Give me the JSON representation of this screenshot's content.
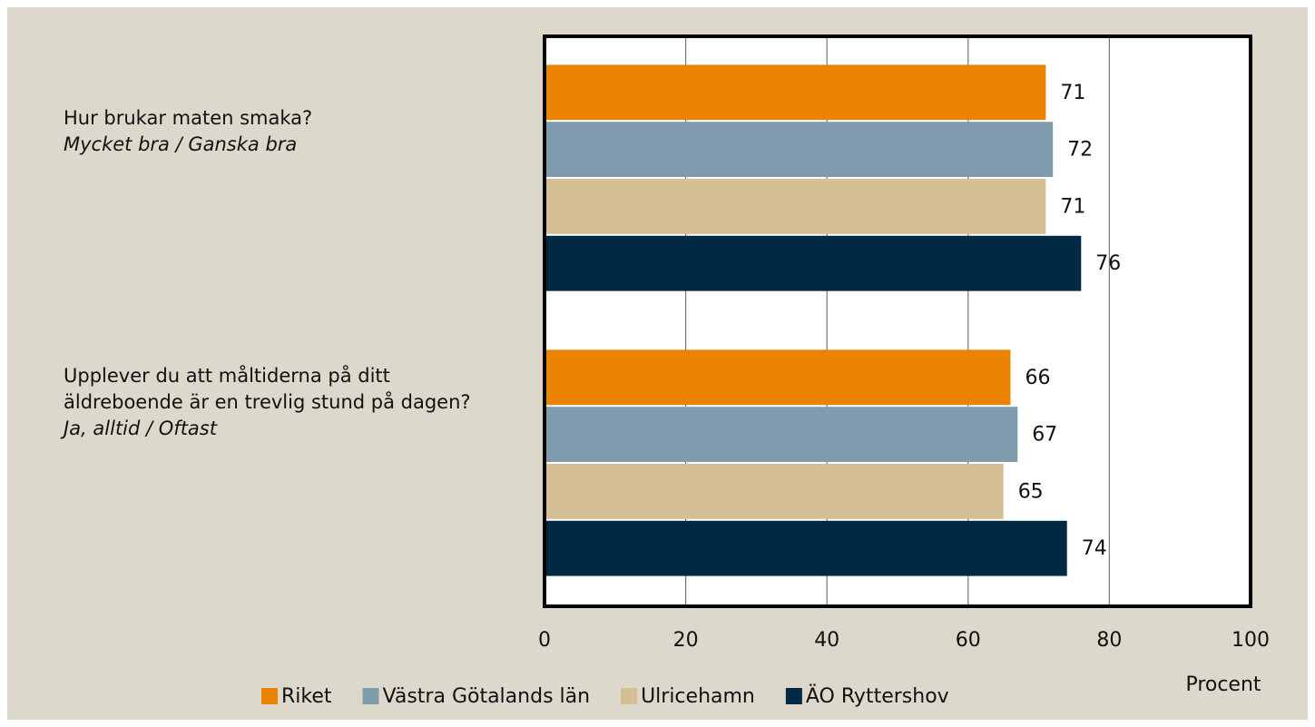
{
  "chart_data": {
    "type": "bar",
    "orientation": "horizontal",
    "categories": [
      "Hur brukar maten smaka?",
      "Upplever du att måltiderna på ditt äldreboende är en trevlig stund på dagen?"
    ],
    "category_subtitles": [
      "Mycket bra / Ganska bra",
      "Ja, alltid / Oftast"
    ],
    "series": [
      {
        "name": "Riket",
        "color": "#e98300",
        "values": [
          71,
          66
        ]
      },
      {
        "name": "Västra Götalands län",
        "color": "#7f9cae",
        "values": [
          72,
          67
        ]
      },
      {
        "name": "Ulricehamn",
        "color": "#d4bf96",
        "values": [
          71,
          65
        ]
      },
      {
        "name": "ÄO Ryttershov",
        "color": "#002a44",
        "values": [
          76,
          74
        ]
      }
    ],
    "xlim": [
      0,
      100
    ],
    "xticks": [
      0,
      20,
      40,
      60,
      80,
      100
    ],
    "grid": true,
    "xlabel": "Procent",
    "legend": "bottom"
  }
}
